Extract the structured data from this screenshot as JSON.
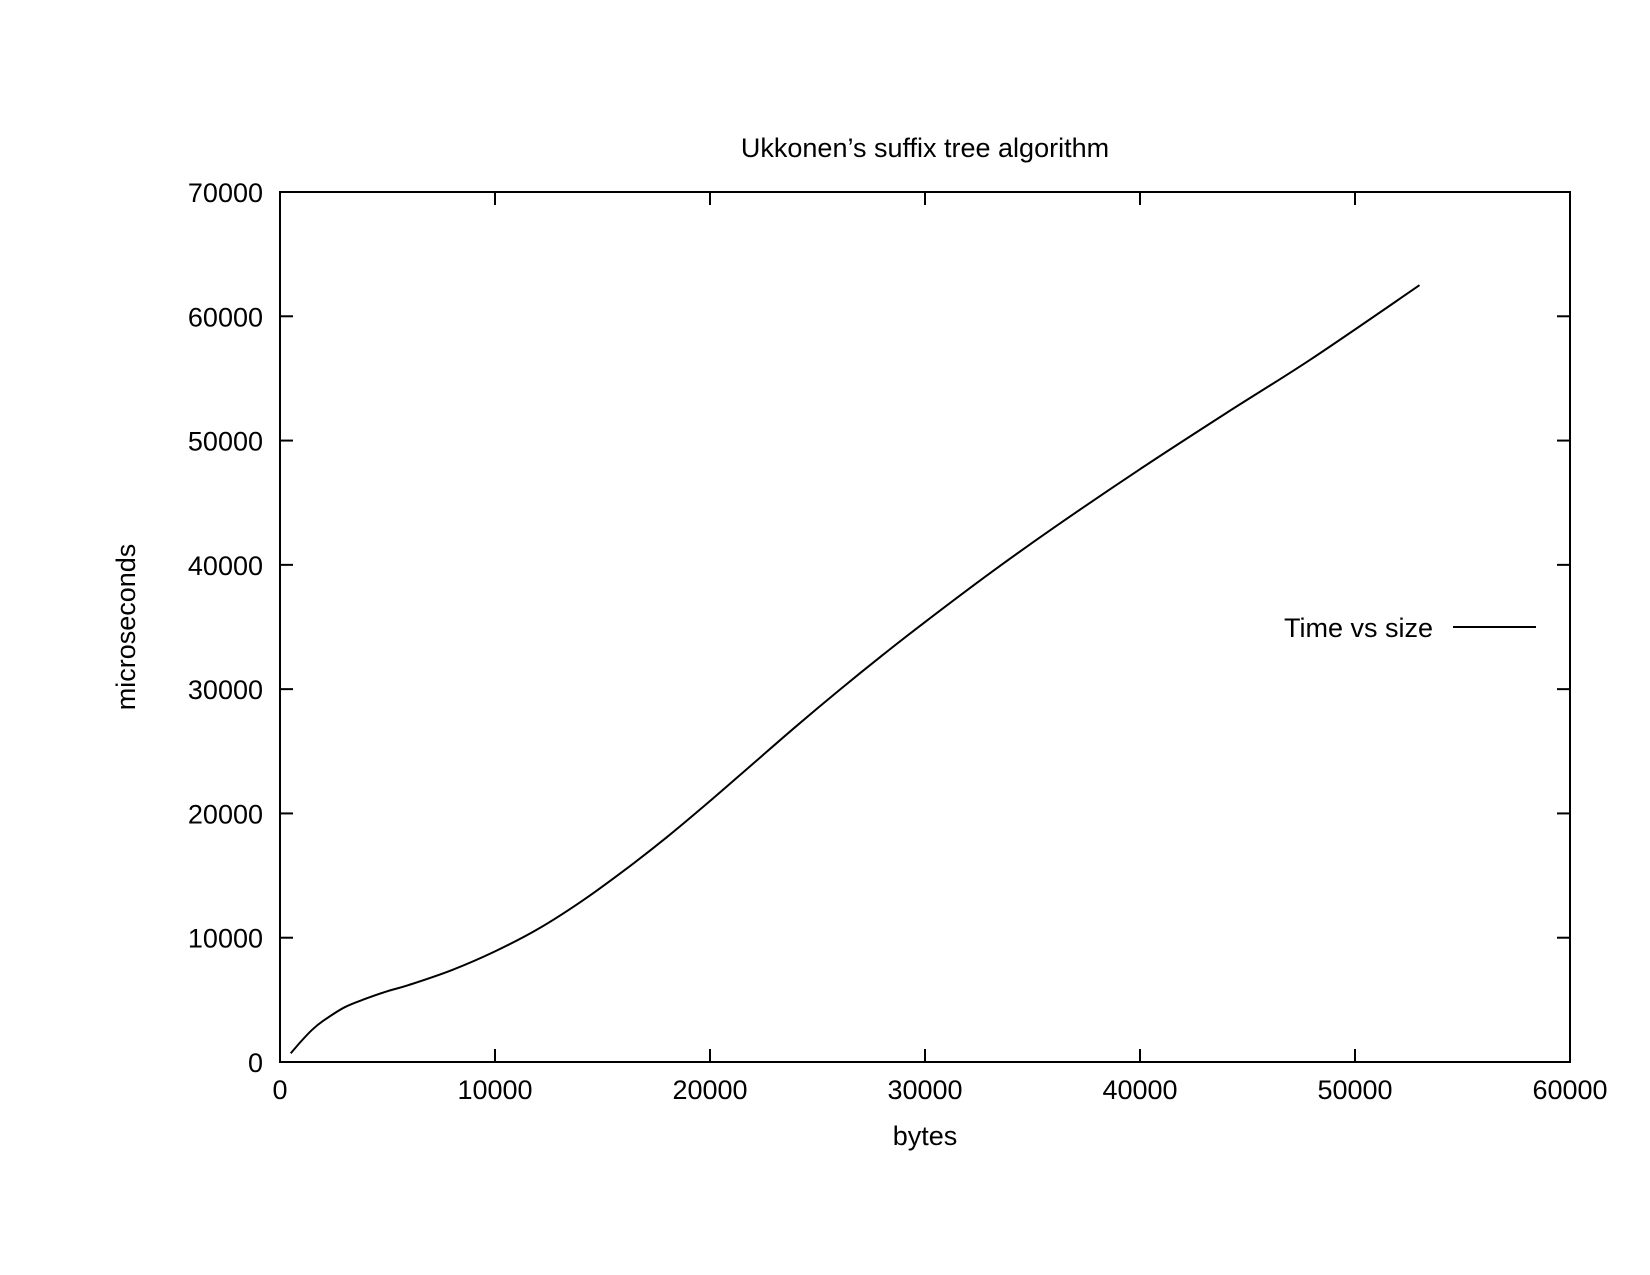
{
  "chart_data": {
    "type": "line",
    "title": "Ukkonen’s suffix tree algorithm",
    "xlabel": "bytes",
    "ylabel": "microseconds",
    "xlim": [
      0,
      60000
    ],
    "ylim": [
      0,
      70000
    ],
    "xticks": [
      "0",
      "10000",
      "20000",
      "30000",
      "40000",
      "50000",
      "60000"
    ],
    "yticks": [
      "0",
      "10000",
      "20000",
      "30000",
      "40000",
      "50000",
      "60000",
      "70000"
    ],
    "grid": false,
    "legend_position": "right",
    "series": [
      {
        "name": "Time vs size",
        "color": "#000000",
        "x": [
          500,
          1000,
          1500,
          2000,
          3000,
          4000,
          5000,
          6000,
          8000,
          10000,
          12000,
          14000,
          16000,
          18000,
          20000,
          22000,
          24000,
          26000,
          28000,
          30000,
          33000,
          36000,
          40000,
          44000,
          48000,
          53000
        ],
        "y": [
          700,
          1700,
          2600,
          3300,
          4400,
          5100,
          5700,
          6200,
          7400,
          8900,
          10700,
          12900,
          15400,
          18100,
          21000,
          24000,
          27000,
          29900,
          32700,
          35400,
          39300,
          43000,
          47700,
          52200,
          56600,
          62500
        ]
      }
    ]
  }
}
